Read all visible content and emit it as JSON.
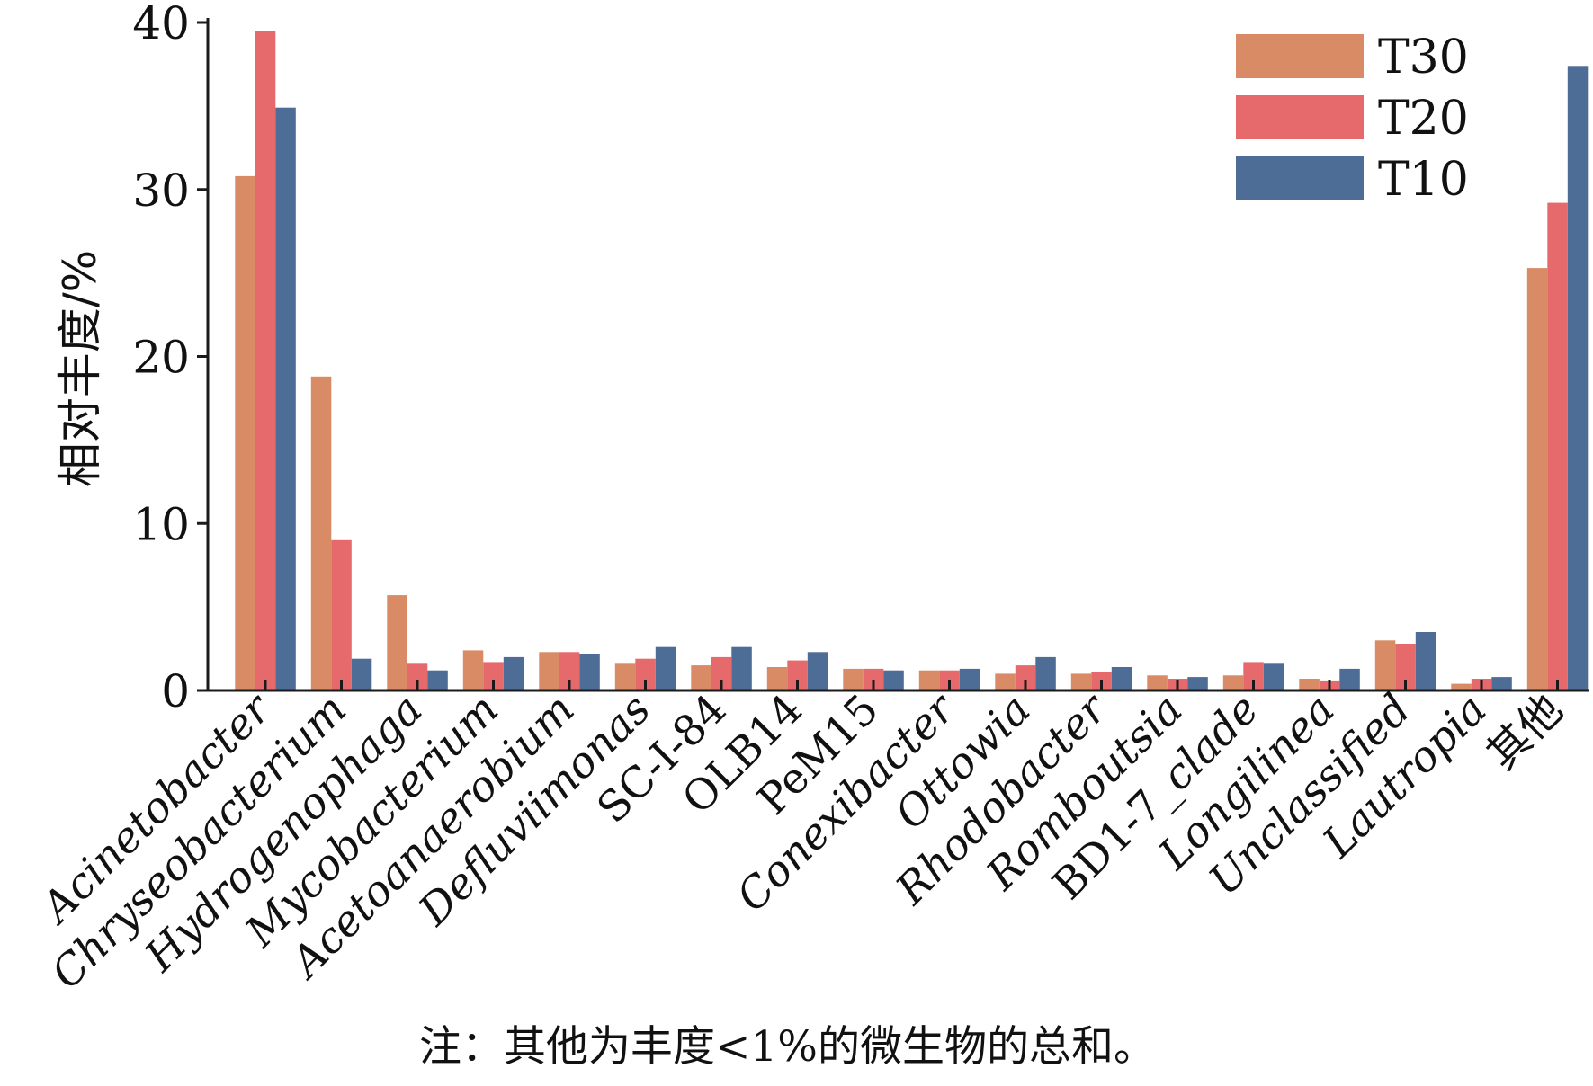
{
  "chart_data": {
    "type": "bar",
    "ylabel": "相对丰度/%",
    "xlabel": "",
    "ylim": [
      0,
      40
    ],
    "yticks": [
      0,
      10,
      20,
      30,
      40
    ],
    "grid": false,
    "legend_position": "top-right",
    "categories": [
      {
        "label": "Acinetobacter",
        "italic": true
      },
      {
        "label": "Chryseobacterium",
        "italic": true
      },
      {
        "label": "Hydrogenophaga",
        "italic": true
      },
      {
        "label": "Mycobacterium",
        "italic": true
      },
      {
        "label": "Acetoanaerobium",
        "italic": true
      },
      {
        "label": "Defluviimonas",
        "italic": true
      },
      {
        "label": "SC-I-84",
        "italic": false
      },
      {
        "label": "OLB14",
        "italic": false
      },
      {
        "label": "PeM15",
        "italic": false
      },
      {
        "label": "Conexibacter",
        "italic": true
      },
      {
        "label": "Ottowia",
        "italic": true
      },
      {
        "label": "Rhodobacter",
        "italic": true
      },
      {
        "label": "Romboutsia",
        "italic": true
      },
      {
        "label": "BD1-7_clade",
        "italic": "mixed",
        "parts": [
          {
            "text": "BD1-7",
            "italic": false
          },
          {
            "text": "_clade",
            "italic": true
          }
        ]
      },
      {
        "label": "Longilinea",
        "italic": true
      },
      {
        "label": "Unclassified",
        "italic": true
      },
      {
        "label": "Lautropia",
        "italic": true
      },
      {
        "label": "其他",
        "italic": false
      }
    ],
    "series": [
      {
        "name": "T30",
        "color": "#d98b66",
        "values": [
          30.8,
          18.8,
          5.7,
          2.4,
          2.3,
          1.6,
          1.5,
          1.4,
          1.3,
          1.2,
          1.0,
          1.0,
          0.9,
          0.9,
          0.7,
          3.0,
          0.4,
          25.3
        ]
      },
      {
        "name": "T20",
        "color": "#e6696b",
        "values": [
          39.5,
          9.0,
          1.6,
          1.7,
          2.3,
          1.9,
          2.0,
          1.8,
          1.3,
          1.2,
          1.5,
          1.1,
          0.7,
          1.7,
          0.6,
          2.8,
          0.7,
          29.2
        ]
      },
      {
        "name": "T10",
        "color": "#4e6d96",
        "values": [
          34.9,
          1.9,
          1.2,
          2.0,
          2.2,
          2.6,
          2.6,
          2.3,
          1.2,
          1.3,
          2.0,
          1.4,
          0.8,
          1.6,
          1.3,
          3.5,
          0.8,
          37.4
        ]
      }
    ],
    "note": "注：其他为丰度<1%的微生物的总和。"
  }
}
